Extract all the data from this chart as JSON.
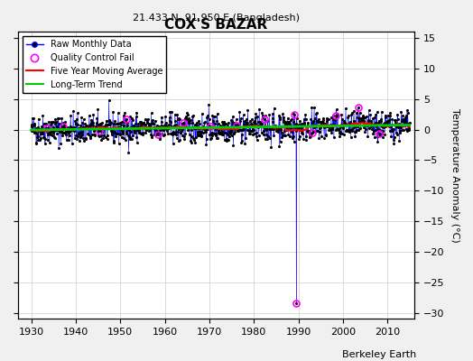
{
  "title": "COX'S BAZAR",
  "subtitle": "21.433 N, 91.950 E (Bangladesh)",
  "ylabel": "Temperature Anomaly (°C)",
  "xlabel_credit": "Berkeley Earth",
  "xlim": [
    1927,
    2016
  ],
  "ylim": [
    -31,
    16
  ],
  "yticks": [
    -30,
    -25,
    -20,
    -15,
    -10,
    -5,
    0,
    5,
    10,
    15
  ],
  "xticks": [
    1930,
    1940,
    1950,
    1960,
    1970,
    1980,
    1990,
    2000,
    2010
  ],
  "bg_color": "#f0f0f0",
  "plot_bg_color": "#ffffff",
  "raw_color": "#0000ff",
  "raw_marker_color": "#000000",
  "qc_color": "#ff00ff",
  "moving_avg_color": "#ff0000",
  "trend_color": "#00cc00",
  "grid_color": "#cccccc",
  "seed": 42,
  "start_year": 1930,
  "end_year": 2014,
  "anomaly_spike_year": 1989,
  "anomaly_spike_value": -28.5
}
